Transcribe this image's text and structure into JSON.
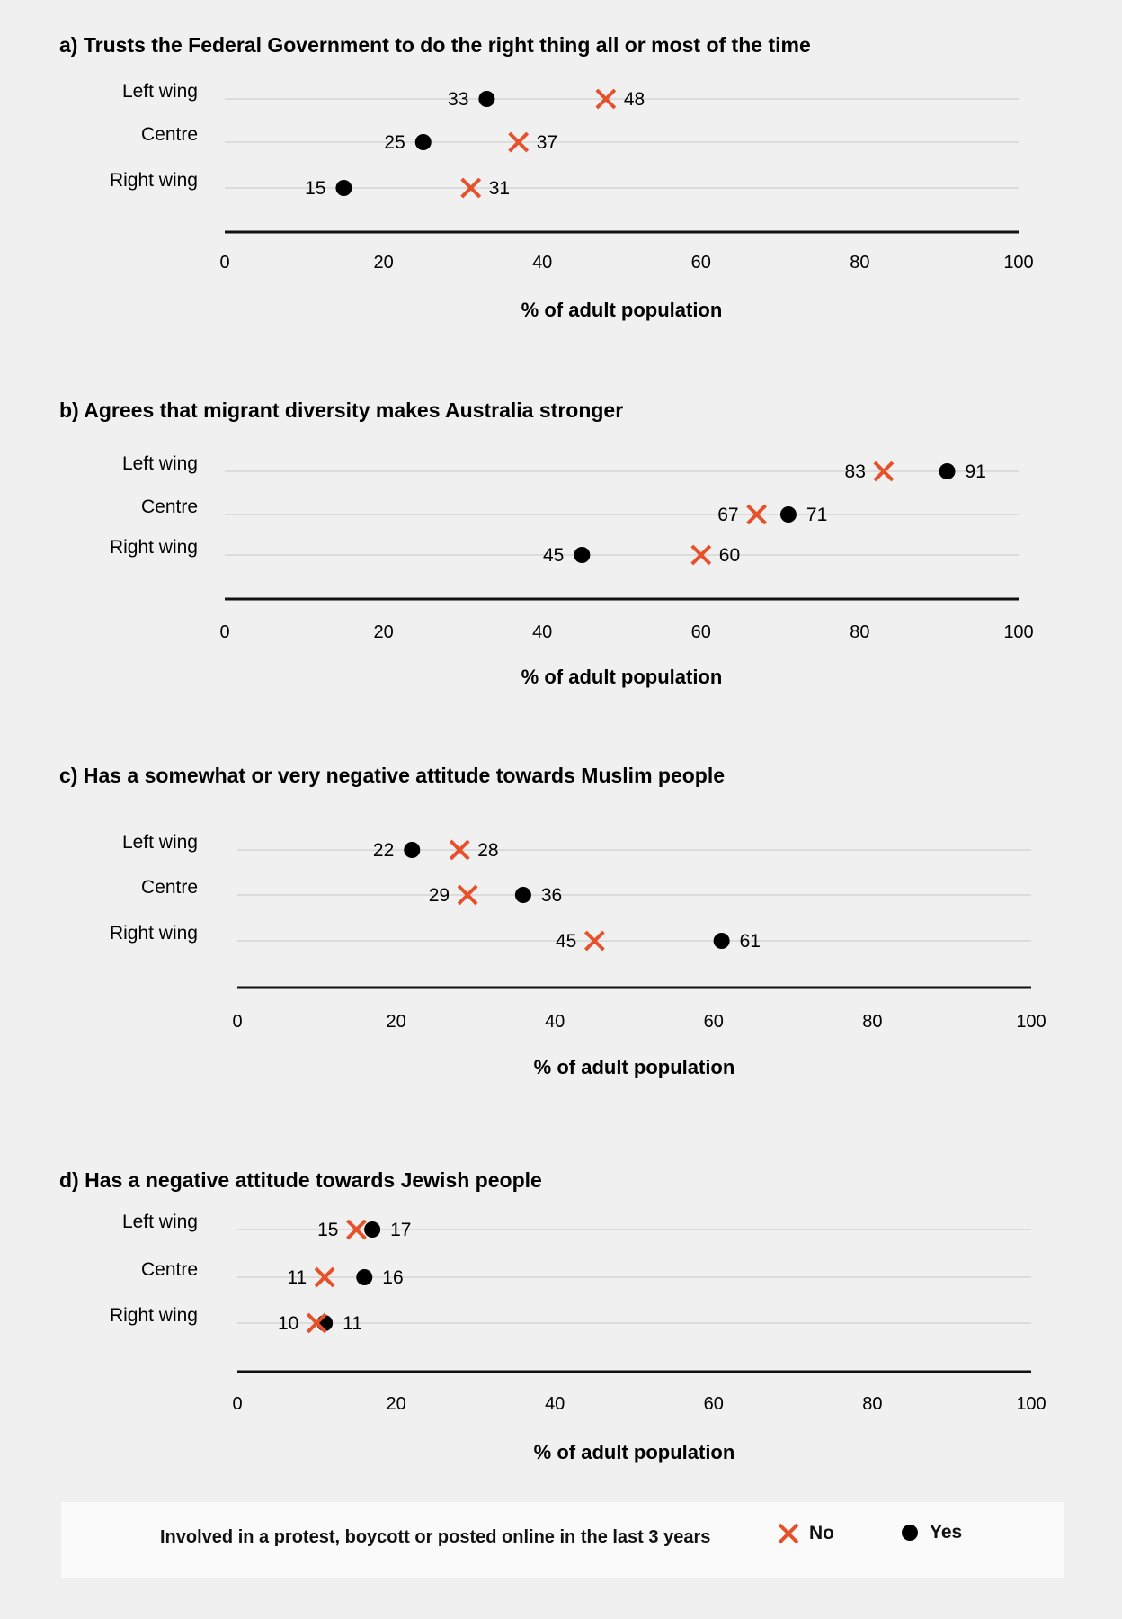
{
  "colors": {
    "no": "#e8502a",
    "yes": "#000000",
    "grid": "#d6d6d6",
    "axis": "#111111"
  },
  "legend": {
    "title": "Involved in a protest, boycott or posted online in the last 3 years",
    "no_label": "No",
    "yes_label": "Yes"
  },
  "chart_data": [
    {
      "type": "scatter",
      "title": "a) Trusts the Federal Government to do the right thing all or most of the time",
      "xlabel": "% of adult population",
      "xlim": [
        0,
        100
      ],
      "xticks": [
        0,
        20,
        40,
        60,
        80,
        100
      ],
      "categories": [
        "Left wing",
        "Centre",
        "Right wing"
      ],
      "series": [
        {
          "name": "No",
          "values": [
            48,
            37,
            31
          ]
        },
        {
          "name": "Yes",
          "values": [
            33,
            25,
            15
          ]
        }
      ]
    },
    {
      "type": "scatter",
      "title": "b) Agrees that migrant diversity makes Australia stronger",
      "xlabel": "% of adult population",
      "xlim": [
        0,
        100
      ],
      "xticks": [
        0,
        20,
        40,
        60,
        80,
        100
      ],
      "categories": [
        "Left wing",
        "Centre",
        "Right wing"
      ],
      "series": [
        {
          "name": "No",
          "values": [
            83,
            67,
            60
          ]
        },
        {
          "name": "Yes",
          "values": [
            91,
            71,
            45
          ]
        }
      ]
    },
    {
      "type": "scatter",
      "title": "c) Has a somewhat or very negative attitude towards Muslim people",
      "xlabel": "% of adult population",
      "xlim": [
        0,
        100
      ],
      "xticks": [
        0,
        20,
        40,
        60,
        80,
        100
      ],
      "categories": [
        "Left wing",
        "Centre",
        "Right wing"
      ],
      "series": [
        {
          "name": "No",
          "values": [
            28,
            29,
            45
          ]
        },
        {
          "name": "Yes",
          "values": [
            22,
            36,
            61
          ]
        }
      ]
    },
    {
      "type": "scatter",
      "title": "d) Has a negative attitude towards Jewish people",
      "xlabel": "% of adult population",
      "xlim": [
        0,
        100
      ],
      "xticks": [
        0,
        20,
        40,
        60,
        80,
        100
      ],
      "categories": [
        "Left wing",
        "Centre",
        "Right wing"
      ],
      "series": [
        {
          "name": "No",
          "values": [
            15,
            11,
            10
          ]
        },
        {
          "name": "Yes",
          "values": [
            17,
            16,
            11
          ]
        }
      ]
    }
  ]
}
